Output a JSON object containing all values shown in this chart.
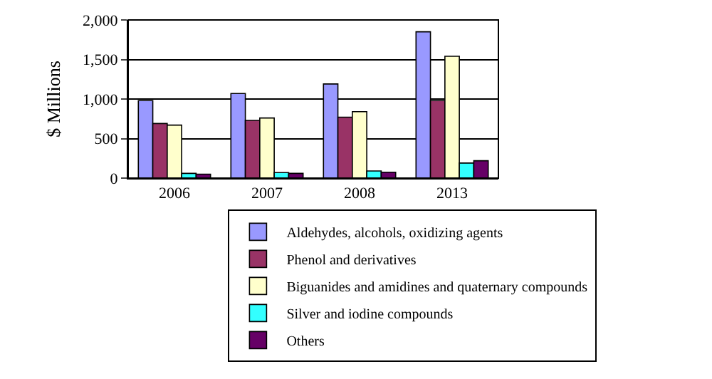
{
  "chart_data": {
    "type": "bar",
    "ylabel": "$ Millions",
    "categories": [
      "2006",
      "2007",
      "2008",
      "2013"
    ],
    "series": [
      {
        "name": "Aldehydes, alcohols, oxidizing agents",
        "color": "#9999ff",
        "values": [
          980,
          1070,
          1190,
          1850
        ]
      },
      {
        "name": "Phenol and derivatives",
        "color": "#993366",
        "values": [
          690,
          730,
          770,
          980
        ]
      },
      {
        "name": "Biguanides and amidines and quaternary compounds",
        "color": "#ffffcc",
        "values": [
          670,
          760,
          840,
          1540
        ]
      },
      {
        "name": "Silver and iodine compounds",
        "color": "#33ffff",
        "values": [
          60,
          70,
          90,
          190
        ]
      },
      {
        "name": "Others",
        "color": "#660066",
        "values": [
          50,
          60,
          75,
          220
        ]
      }
    ],
    "ylim": [
      0,
      2000
    ],
    "yticks": [
      0,
      {
        "value": 500,
        "label": "500"
      },
      {
        "value": 1000,
        "label": "1,000"
      },
      {
        "value": 1500,
        "label": "1,500"
      },
      {
        "value": 2000,
        "label": "2,000"
      }
    ],
    "grid": "y",
    "legend": "bottom"
  }
}
